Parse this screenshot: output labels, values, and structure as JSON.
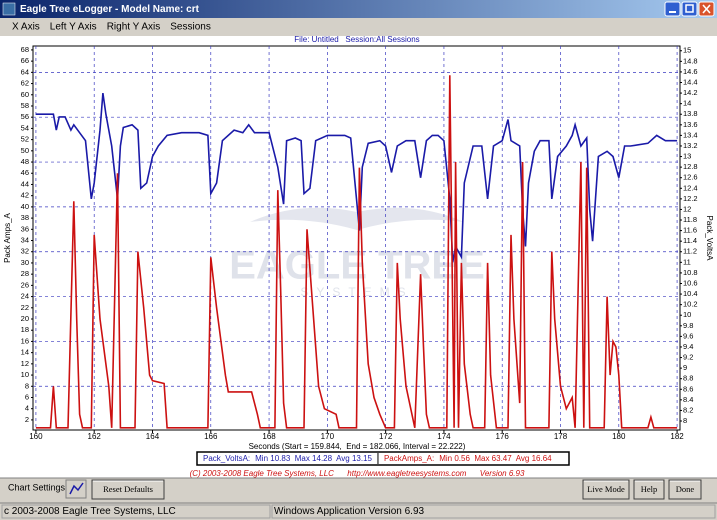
{
  "window": {
    "title": "Eagle Tree eLogger - Model Name: crt"
  },
  "menu": [
    "X Axis",
    "Left Y Axis",
    "Right Y Axis",
    "Sessions"
  ],
  "chart_data": {
    "type": "line",
    "subtitle": "File: Untitled   Session:All Sessions",
    "x_label": "Seconds (Start = 159.844,  End = 182.066, Interval = 22.222)",
    "y_label": "Pack Amps_A",
    "y2_label": "Pack_VoltsA",
    "watermark": [
      "EAGLE TREE",
      "SYSTEMS"
    ],
    "xlim": [
      159.9,
      182.1
    ],
    "xticks": [
      160,
      162,
      164,
      166,
      168,
      170,
      172,
      174,
      176,
      178,
      180,
      182
    ],
    "ylim": [
      0.2,
      68.7
    ],
    "yticks": [
      2,
      4,
      6,
      8,
      10,
      12,
      14,
      16,
      18,
      20,
      22,
      24,
      26,
      28,
      30,
      32,
      34,
      36,
      38,
      40,
      42,
      44,
      46,
      48,
      50,
      52,
      54,
      56,
      58,
      60,
      62,
      64,
      66,
      68
    ],
    "y2lim": [
      7.83,
      15.09
    ],
    "y2ticks": [
      8,
      8.2,
      8.4,
      8.6,
      8.8,
      9,
      9.2,
      9.4,
      9.6,
      9.8,
      10,
      10.2,
      10.4,
      10.6,
      10.8,
      11,
      11.2,
      11.4,
      11.6,
      11.8,
      12,
      12.2,
      12.4,
      12.6,
      12.8,
      13,
      13.2,
      13.4,
      13.6,
      13.8,
      14,
      14.2,
      14.4,
      14.6,
      14.8,
      15
    ],
    "grid": true,
    "series": [
      {
        "name": "Pack_VoltsA:",
        "stats": "Min 10.83  Max 14.28  Avg 13.15",
        "color": "#1a1aa8",
        "axis": "y2",
        "x": [
          160.0,
          160.6,
          160.7,
          160.8,
          161.0,
          161.2,
          161.3,
          161.5,
          161.7,
          161.9,
          162.0,
          162.2,
          162.3,
          162.4,
          162.6,
          162.8,
          162.9,
          163.0,
          163.3,
          163.5,
          163.6,
          163.8,
          164.0,
          164.2,
          164.5,
          165.0,
          165.6,
          165.9,
          166.0,
          166.2,
          166.4,
          166.8,
          167.1,
          167.3,
          167.5,
          168.0,
          168.3,
          168.5,
          168.6,
          168.9,
          169.1,
          169.2,
          169.4,
          169.6,
          170.0,
          170.6,
          170.8,
          171.0,
          171.1,
          171.2,
          171.4,
          171.8,
          172.0,
          172.2,
          172.4,
          172.7,
          173.0,
          173.2,
          173.4,
          173.6,
          173.8,
          174.0,
          174.2,
          174.3,
          174.4,
          174.6,
          174.7,
          175.0,
          175.3,
          175.5,
          175.7,
          176.0,
          176.2,
          176.3,
          176.6,
          176.7,
          176.8,
          176.9,
          177.1,
          177.3,
          177.6,
          177.7,
          177.9,
          178.2,
          178.4,
          178.5,
          178.7,
          178.9,
          179.0,
          179.1,
          179.3,
          179.6,
          179.8,
          180.0,
          180.2,
          180.4,
          181.0,
          181.3,
          181.6,
          182.0
        ],
        "values": [
          13.8,
          13.8,
          13.5,
          13.75,
          13.75,
          13.5,
          13.6,
          13.45,
          13.3,
          12.2,
          12.5,
          13.5,
          14.2,
          13.8,
          13.2,
          12.2,
          13.2,
          13.55,
          13.6,
          13.5,
          12.4,
          12.5,
          13.0,
          13.2,
          13.4,
          13.45,
          13.45,
          13.4,
          12.3,
          12.5,
          13.3,
          13.5,
          13.45,
          13.6,
          13.45,
          13.45,
          12.8,
          12.1,
          13.3,
          13.35,
          13.3,
          12.3,
          12.4,
          13.3,
          13.4,
          13.4,
          13.35,
          12.2,
          11.6,
          12.8,
          13.25,
          13.3,
          13.2,
          12.7,
          13.2,
          13.3,
          13.3,
          12.6,
          13.3,
          13.4,
          13.4,
          13.3,
          12.2,
          11.0,
          11.3,
          11.1,
          12.5,
          13.2,
          13.2,
          12.2,
          13.2,
          13.3,
          13.7,
          13.3,
          13.2,
          12.0,
          11.3,
          12.5,
          13.1,
          13.3,
          13.3,
          12.2,
          13.0,
          13.2,
          13.4,
          13.6,
          13.2,
          13.35,
          12.0,
          11.4,
          13.0,
          13.1,
          13.0,
          12.6,
          13.2,
          13.2,
          13.25,
          13.4,
          13.3,
          13.3
        ]
      },
      {
        "name": "PackAmps_A:",
        "stats": "Min 0.56  Max 63.47  Avg 16.64",
        "color": "#cc1111",
        "x": [
          160.0,
          160.5,
          160.6,
          160.7,
          161.1,
          161.3,
          161.4,
          161.5,
          161.6,
          161.9,
          162.0,
          162.2,
          162.5,
          162.6,
          162.8,
          162.9,
          163.4,
          163.5,
          163.7,
          163.9,
          164.0,
          164.4,
          164.5,
          165.9,
          166.0,
          166.2,
          166.5,
          166.6,
          167.4,
          167.6,
          167.7,
          168.2,
          168.3,
          168.4,
          168.5,
          168.6,
          169.2,
          169.3,
          169.5,
          169.7,
          169.9,
          170.3,
          170.4,
          171.0,
          171.1,
          171.2,
          171.4,
          171.6,
          171.8,
          172.0,
          172.3,
          172.4,
          172.5,
          172.7,
          173.0,
          173.2,
          173.3,
          173.4,
          173.5,
          174.1,
          174.2,
          174.35,
          174.4,
          174.5,
          174.6,
          174.7,
          174.9,
          175.0,
          175.4,
          175.5,
          175.6,
          175.8,
          176.2,
          176.3,
          176.4,
          176.6,
          176.7,
          176.8,
          177.6,
          177.7,
          177.8,
          178.0,
          178.2,
          178.4,
          178.5,
          178.7,
          178.8,
          178.9,
          179.0,
          179.5,
          179.6,
          179.7,
          179.8,
          179.9,
          180.0,
          180.1,
          181.0,
          181.1,
          181.2,
          182.0
        ],
        "values": [
          0.6,
          0.6,
          8,
          0.6,
          0.6,
          41,
          20,
          3,
          0.6,
          0.6,
          35,
          20,
          8,
          0.6,
          46,
          0.6,
          0.6,
          32,
          22,
          10,
          9,
          8.5,
          0.6,
          0.6,
          31,
          22,
          10,
          7,
          7,
          3,
          0.6,
          0.6,
          43,
          25,
          5,
          0.6,
          0.6,
          36,
          22,
          8,
          4,
          3,
          0.6,
          0.6,
          47,
          30,
          12,
          6,
          3,
          0.6,
          0.6,
          30,
          20,
          8,
          0.6,
          28,
          15,
          3,
          0.6,
          0.6,
          63.5,
          0.6,
          48,
          0.6,
          30,
          12,
          3,
          0.6,
          0.6,
          30,
          10,
          0.6,
          0.6,
          35,
          20,
          5,
          48,
          0.6,
          0.6,
          32,
          20,
          8,
          4,
          6,
          0.6,
          48,
          0.6,
          47,
          0.6,
          0.6,
          24,
          10,
          16,
          15,
          10,
          0.6,
          0.6,
          2.5,
          0.6,
          0.6
        ]
      }
    ]
  },
  "footer": {
    "copyright": "(C) 2003-2008 Eagle Tree Systems, LLC      http://www.eagletreesystems.com      Version 6.93",
    "chart_settings": "Chart Settings:",
    "buttons": [
      "Reset Defaults",
      "Live Mode",
      "Help",
      "Done"
    ]
  },
  "status_bar": [
    "c 2003-2008 Eagle Tree Systems, LLC",
    "Windows Application Version 6.93"
  ]
}
